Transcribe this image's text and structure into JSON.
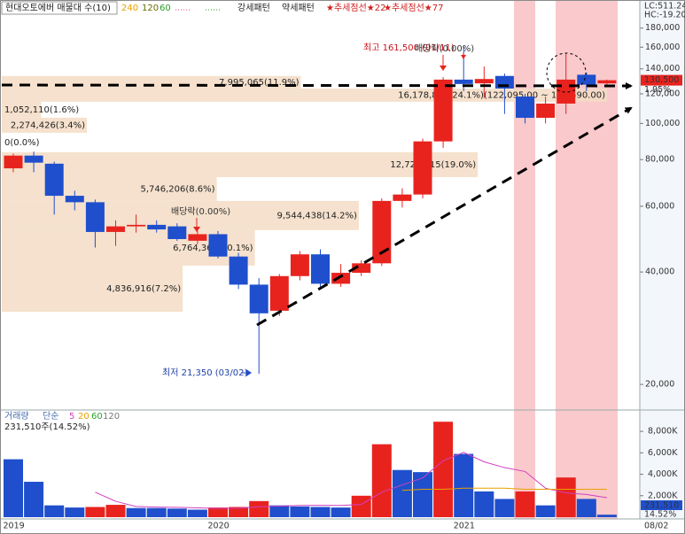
{
  "chart_data": [
    {
      "type": "candlestick",
      "title": "현대오토에버 매물대 수(10)",
      "ma_legend": [
        {
          "name": "240",
          "color": "#e8a000"
        },
        {
          "name": "120",
          "color": "#6b6b00"
        },
        {
          "name": "60",
          "color": "#2aa02a"
        }
      ],
      "patterns": [
        "강세패턴",
        "약세패턴"
      ],
      "signals": [
        "★추세점선★22",
        "★추세점선★77"
      ],
      "categories": [
        "2019",
        null,
        null,
        null,
        null,
        null,
        null,
        null,
        null,
        null,
        "2020",
        null,
        null,
        null,
        null,
        null,
        null,
        null,
        null,
        null,
        null,
        null,
        "2021",
        null,
        null,
        null,
        null,
        null,
        null,
        null
      ],
      "end_date": "08/02",
      "open": [
        75800,
        82000,
        78000,
        64000,
        61500,
        51200,
        53000,
        53500,
        53000,
        48500,
        50500,
        44000,
        37000,
        31500,
        39000,
        44600,
        37200,
        39800,
        42200,
        62000,
        64500,
        89500,
        131000,
        128000,
        134000,
        118000,
        103500,
        113000,
        135000,
        128000
      ],
      "high": [
        83000,
        84000,
        79000,
        66000,
        62500,
        55000,
        57000,
        55000,
        54000,
        51500,
        51500,
        45000,
        38500,
        39500,
        45500,
        46000,
        42000,
        43000,
        63000,
        67000,
        91000,
        133000,
        161500,
        142000,
        136000,
        120000,
        118000,
        154000,
        137000,
        131000
      ],
      "low": [
        74000,
        74000,
        57000,
        58500,
        46500,
        47000,
        51000,
        51000,
        48500,
        47500,
        43500,
        36000,
        21350,
        30500,
        38000,
        36500,
        36500,
        39000,
        41500,
        59500,
        63000,
        86000,
        122000,
        117000,
        106000,
        100000,
        100000,
        106000,
        122000,
        127000
      ],
      "close": [
        82000,
        78500,
        64000,
        61500,
        51200,
        53000,
        53500,
        52000,
        49000,
        50500,
        44000,
        37000,
        31000,
        39000,
        44600,
        37200,
        39800,
        42200,
        62000,
        64500,
        89500,
        131000,
        127500,
        131500,
        124000,
        103500,
        113000,
        131000,
        127000,
        130500
      ],
      "up_color": "#e8231e",
      "down_color": "#1f4fcc",
      "log_scale": true,
      "ylim": [
        17170,
        194000
      ],
      "yticks": [
        {
          "value": 20000,
          "label": "20,000"
        },
        {
          "value": 40000,
          "label": "40,000"
        },
        {
          "value": 60000,
          "label": "60,000"
        },
        {
          "value": 80000,
          "label": "80,000"
        },
        {
          "value": 100000,
          "label": "100,000"
        },
        {
          "value": 120000,
          "label": "120,000"
        },
        {
          "value": 140000,
          "label": "140,000"
        },
        {
          "value": 160000,
          "label": "160,000"
        },
        {
          "value": 180000,
          "label": "180,000"
        }
      ],
      "volume_profile": {
        "color": "#f3dcc4",
        "bands": [
          {
            "low": 124000,
            "high": 134000,
            "volume": 7995065,
            "share": 11.9,
            "label": "7,995,065(11.9%)"
          },
          {
            "low": 114300,
            "high": 124000,
            "volume": 16178806,
            "share": 24.1,
            "label": "16,178,806(24.1%)"
          },
          {
            "low": 103600,
            "high": 114300,
            "volume": 1052110,
            "share": 1.6,
            "label": "1,052,110(1.6%)"
          },
          {
            "low": 94400,
            "high": 103600,
            "volume": 2274426,
            "share": 3.4,
            "label": "2,274,426(3.4%)"
          },
          {
            "low": 83700,
            "high": 94400,
            "volume": 0,
            "share": 0,
            "label": "0(0.0%)"
          },
          {
            "low": 71800,
            "high": 83700,
            "volume": 12724415,
            "share": 19.0,
            "label": "12,724,415(19.0%)"
          },
          {
            "low": 62000,
            "high": 71800,
            "volume": 5746206,
            "share": 8.6,
            "label": "5,746,206(8.6%)"
          },
          {
            "low": 51800,
            "high": 62000,
            "volume": 9544438,
            "share": 14.2,
            "label": "9,544,438(14.2%)"
          },
          {
            "low": 41600,
            "high": 51800,
            "volume": 6764361,
            "share": 10.1,
            "label": "6,764,361(10.1%)"
          },
          {
            "low": 31300,
            "high": 41600,
            "volume": 4836916,
            "share": 7.2,
            "label": "4,836,916(7.2%)"
          }
        ],
        "max_range_label": "(122,095.00 ~ 138,590.00)"
      },
      "annotations": {
        "high": "최고 161,500 (01/11)",
        "low": "최저 21,350 (03/02)",
        "ex_dividend": [
          "배당락(0.00%)",
          "배당락(0.00%)"
        ]
      },
      "last_price_label": "130,500",
      "change_label": "1.95%",
      "lc_label": "LC:511.24",
      "hc_label": "HC:-19.20"
    },
    {
      "type": "bar",
      "title": "거래량",
      "ma_label": "단순",
      "values": [
        5400000,
        3300000,
        1100000,
        900000,
        950000,
        1150000,
        850000,
        850000,
        800000,
        700000,
        900000,
        950000,
        1500000,
        1100000,
        1000000,
        950000,
        900000,
        2000000,
        6800000,
        4400000,
        4200000,
        8900000,
        5900000,
        2400000,
        1700000,
        2400000,
        1100000,
        3700000,
        1700000,
        231510
      ],
      "colors": [
        "#1f4fcc",
        "#1f4fcc",
        "#1f4fcc",
        "#1f4fcc",
        "#e8231e",
        "#e8231e",
        "#1f4fcc",
        "#1f4fcc",
        "#1f4fcc",
        "#1f4fcc",
        "#e8231e",
        "#e8231e",
        "#e8231e",
        "#1f4fcc",
        "#1f4fcc",
        "#1f4fcc",
        "#1f4fcc",
        "#e8231e",
        "#e8231e",
        "#1f4fcc",
        "#1f4fcc",
        "#e8231e",
        "#1f4fcc",
        "#1f4fcc",
        "#1f4fcc",
        "#e8231e",
        "#1f4fcc",
        "#e8231e",
        "#1f4fcc",
        "#1f4fcc"
      ],
      "ma_series": [
        {
          "name": "5",
          "color": "#d040c0",
          "values": [
            null,
            null,
            null,
            null,
            2330000,
            1480000,
            990000,
            940000,
            920000,
            870000,
            820000,
            840000,
            970000,
            1030000,
            1090000,
            1100000,
            1090000,
            1190000,
            2330000,
            3010000,
            3660000,
            5260000,
            6040000,
            5160000,
            4620000,
            4260000,
            2700000,
            2260000,
            2120000,
            1820000
          ]
        },
        {
          "name": "20",
          "color": "#e8a000",
          "values": [
            null,
            null,
            null,
            null,
            null,
            null,
            null,
            null,
            null,
            null,
            null,
            null,
            null,
            null,
            null,
            null,
            null,
            null,
            null,
            2500000,
            2600000,
            2600000,
            2700000,
            2700000,
            2700000,
            2600000,
            2600000,
            2600000,
            2600000,
            2600000
          ]
        },
        {
          "name": "60",
          "color": "#2aa02a"
        },
        {
          "name": "120",
          "color": "#777777"
        }
      ],
      "ylim": [
        0,
        9000000
      ],
      "yticks": [
        {
          "value": 2000000,
          "label": "2,000K"
        },
        {
          "value": 4000000,
          "label": "4,000K"
        },
        {
          "value": 6000000,
          "label": "6,000K"
        },
        {
          "value": 8000000,
          "label": "8,000K"
        }
      ],
      "last_label": "231,510주(14.52%)",
      "last_value_label": "231,510",
      "last_change_label": "14.52%"
    }
  ]
}
